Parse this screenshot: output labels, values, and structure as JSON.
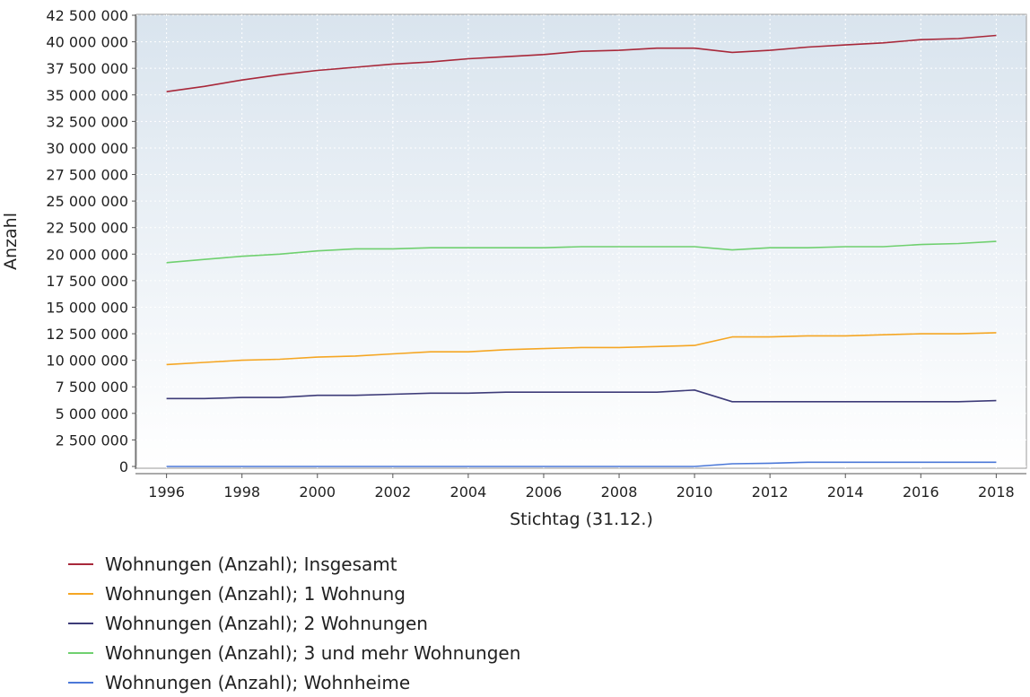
{
  "chart_data": {
    "type": "line",
    "title": "",
    "xlabel": "Stichtag (31.12.)",
    "ylabel": "Anzahl",
    "x": [
      1996,
      1997,
      1998,
      1999,
      2000,
      2001,
      2002,
      2003,
      2004,
      2005,
      2006,
      2007,
      2008,
      2009,
      2010,
      2011,
      2012,
      2013,
      2014,
      2015,
      2016,
      2017,
      2018
    ],
    "xticks": [
      "1996",
      "1998",
      "2000",
      "2002",
      "2004",
      "2006",
      "2008",
      "2010",
      "2012",
      "2014",
      "2016",
      "2018"
    ],
    "xlim": [
      1995.2,
      2018.8
    ],
    "ylim": [
      0,
      42500000
    ],
    "yticks": [
      "0",
      "2 500 000",
      "5 000 000",
      "7 500 000",
      "10 000 000",
      "12 500 000",
      "15 000 000",
      "17 500 000",
      "20 000 000",
      "22 500 000",
      "25 000 000",
      "27 500 000",
      "30 000 000",
      "32 500 000",
      "35 000 000",
      "37 500 000",
      "40 000 000",
      "42 500 000"
    ],
    "ytick_values": [
      0,
      2500000,
      5000000,
      7500000,
      10000000,
      12500000,
      15000000,
      17500000,
      20000000,
      22500000,
      25000000,
      27500000,
      30000000,
      32500000,
      35000000,
      37500000,
      40000000,
      42500000
    ],
    "grid": true,
    "legend_position": "bottom",
    "series": [
      {
        "name": "Wohnungen (Anzahl); Insgesamt",
        "color": "#a8283a",
        "values": [
          35300000,
          35800000,
          36400000,
          36900000,
          37300000,
          37600000,
          37900000,
          38100000,
          38400000,
          38600000,
          38800000,
          39100000,
          39200000,
          39400000,
          39400000,
          39000000,
          39200000,
          39500000,
          39700000,
          39900000,
          40200000,
          40300000,
          40600000
        ]
      },
      {
        "name": "Wohnungen (Anzahl); 1 Wohnung",
        "color": "#f5a623",
        "values": [
          9600000,
          9800000,
          10000000,
          10100000,
          10300000,
          10400000,
          10600000,
          10800000,
          10800000,
          11000000,
          11100000,
          11200000,
          11200000,
          11300000,
          11400000,
          12200000,
          12200000,
          12300000,
          12300000,
          12400000,
          12500000,
          12500000,
          12600000
        ]
      },
      {
        "name": "Wohnungen (Anzahl); 2 Wohnungen",
        "color": "#3d3b78",
        "values": [
          6400000,
          6400000,
          6500000,
          6500000,
          6700000,
          6700000,
          6800000,
          6900000,
          6900000,
          7000000,
          7000000,
          7000000,
          7000000,
          7000000,
          7200000,
          6100000,
          6100000,
          6100000,
          6100000,
          6100000,
          6100000,
          6100000,
          6200000
        ]
      },
      {
        "name": "Wohnungen (Anzahl); 3 und mehr Wohnungen",
        "color": "#6fd06f",
        "values": [
          19200000,
          19500000,
          19800000,
          20000000,
          20300000,
          20500000,
          20500000,
          20600000,
          20600000,
          20600000,
          20600000,
          20700000,
          20700000,
          20700000,
          20700000,
          20400000,
          20600000,
          20600000,
          20700000,
          20700000,
          20900000,
          21000000,
          21200000
        ]
      },
      {
        "name": "Wohnungen (Anzahl); Wohnheime",
        "color": "#4b78d8",
        "values": [
          0,
          0,
          0,
          0,
          0,
          0,
          0,
          0,
          0,
          0,
          0,
          0,
          0,
          0,
          0,
          250000,
          300000,
          400000,
          400000,
          400000,
          400000,
          400000,
          400000
        ]
      }
    ]
  }
}
